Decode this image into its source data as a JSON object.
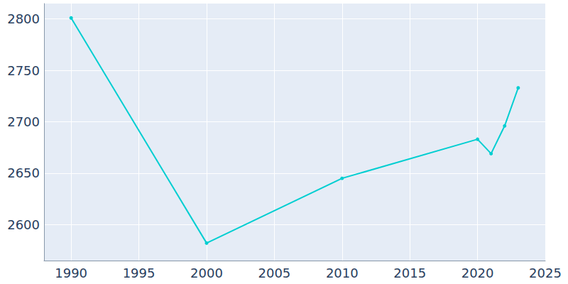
{
  "chart_data": {
    "type": "line",
    "x": [
      1990,
      2000,
      2010,
      2020,
      2021,
      2022,
      2023
    ],
    "values": [
      2801,
      2582,
      2645,
      2683,
      2669,
      2696,
      2733
    ],
    "color": "#00ced1",
    "marker": "circle",
    "xlim": [
      1988,
      2025
    ],
    "xticks": [
      1990,
      1995,
      2000,
      2005,
      2010,
      2015,
      2020,
      2025
    ],
    "ylim": [
      2565,
      2815
    ],
    "yticks": [
      2600,
      2650,
      2700,
      2750,
      2800
    ],
    "grid": true
  }
}
